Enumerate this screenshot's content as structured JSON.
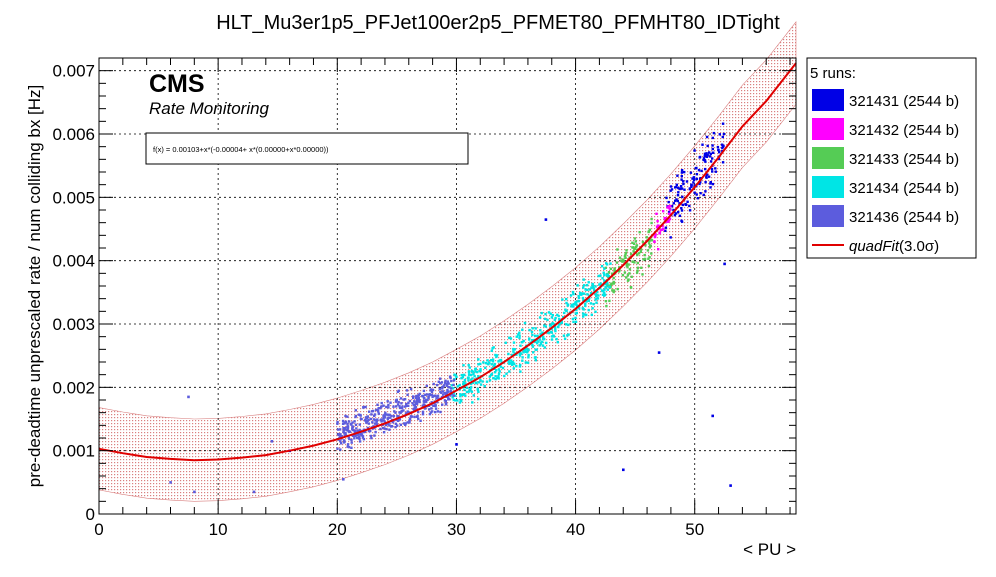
{
  "chart_data": {
    "type": "scatter",
    "title": "HLT_Mu3er1p5_PFJet100er2p5_PFMET80_PFMHT80_IDTight",
    "xlabel": "< PU >",
    "ylabel": "pre-deadtime unprescaled rate / num colliding bx [Hz]",
    "xlim": [
      0,
      58.5
    ],
    "ylim": [
      0,
      0.0072
    ],
    "x_ticks": [
      0,
      10,
      20,
      30,
      40,
      50
    ],
    "y_ticks": [
      0,
      0.001,
      0.002,
      0.003,
      0.004,
      0.005,
      0.006,
      0.007
    ],
    "y_tick_labels": [
      "0",
      "0.001",
      "0.002",
      "0.003",
      "0.004",
      "0.005",
      "0.006",
      "0.007"
    ],
    "grid": true,
    "legend_position": "right",
    "legend_header": "5 runs:",
    "brand": "CMS",
    "subtitle": "Rate Monitoring",
    "fit_formula": "f(x) = 0.00103+x*(-0.00004+ x*(0.00000+x*0.00000))",
    "fit": {
      "name": "quadFit(3.0σ)",
      "label_prefix": "quadFit",
      "label_suffix": "(3.0σ)",
      "color": "#e00000",
      "band_color": "#d98080",
      "points": [
        [
          0,
          0.00103
        ],
        [
          2,
          0.00096
        ],
        [
          4,
          0.0009
        ],
        [
          6,
          0.00087
        ],
        [
          8,
          0.00085
        ],
        [
          10,
          0.00086
        ],
        [
          12,
          0.00089
        ],
        [
          14,
          0.00093
        ],
        [
          16,
          0.001
        ],
        [
          18,
          0.00108
        ],
        [
          20,
          0.00118
        ],
        [
          22,
          0.0013
        ],
        [
          24,
          0.00143
        ],
        [
          26,
          0.00158
        ],
        [
          28,
          0.00175
        ],
        [
          30,
          0.00195
        ],
        [
          32,
          0.00216
        ],
        [
          34,
          0.0024
        ],
        [
          36,
          0.00266
        ],
        [
          38,
          0.00294
        ],
        [
          40,
          0.00324
        ],
        [
          42,
          0.00357
        ],
        [
          44,
          0.00393
        ],
        [
          46,
          0.00431
        ],
        [
          48,
          0.00472
        ],
        [
          50,
          0.00516
        ],
        [
          52,
          0.00563
        ],
        [
          54,
          0.00612
        ],
        [
          56,
          0.00652
        ],
        [
          58.5,
          0.00712
        ]
      ],
      "band_half_width": 0.00065
    },
    "series": [
      {
        "name": "321431 (2544 b)",
        "color": "#0000e6",
        "x_range": [
          47.5,
          52.5
        ],
        "y_center_offset": 0.0001,
        "y_spread": 0.0006,
        "n_points": 150,
        "outliers": [
          [
            37.5,
            0.00465
          ],
          [
            52.5,
            0.00395
          ],
          [
            51.5,
            0.00155
          ],
          [
            47,
            0.00255
          ],
          [
            16,
            0.001
          ],
          [
            30,
            0.0011
          ],
          [
            44,
            0.0007
          ],
          [
            53,
            0.00045
          ]
        ]
      },
      {
        "name": "321432 (2544 b)",
        "color": "#ff00ff",
        "x_range": [
          46.6,
          48.0
        ],
        "y_center_offset": 0.0,
        "y_spread": 0.0004,
        "n_points": 40,
        "outliers": []
      },
      {
        "name": "321433 (2544 b)",
        "color": "#55cc55",
        "x_range": [
          42.5,
          46.5
        ],
        "y_center_offset": -5e-05,
        "y_spread": 0.0005,
        "n_points": 120,
        "outliers": []
      },
      {
        "name": "321434 (2544 b)",
        "color": "#00e5e5",
        "x_range": [
          29.5,
          43.0
        ],
        "y_center_offset": 0.0,
        "y_spread": 0.00045,
        "n_points": 430,
        "outliers": []
      },
      {
        "name": "321436 (2544 b)",
        "color": "#5c5cdd",
        "x_range": [
          20.0,
          29.8
        ],
        "y_center_offset": 8e-05,
        "y_spread": 0.0004,
        "n_points": 420,
        "outliers": [
          [
            7.5,
            0.00185
          ],
          [
            8,
            0.00035
          ],
          [
            13,
            0.00035
          ],
          [
            14.5,
            0.00115
          ],
          [
            6,
            0.0005
          ],
          [
            20.5,
            0.00055
          ]
        ]
      }
    ]
  }
}
